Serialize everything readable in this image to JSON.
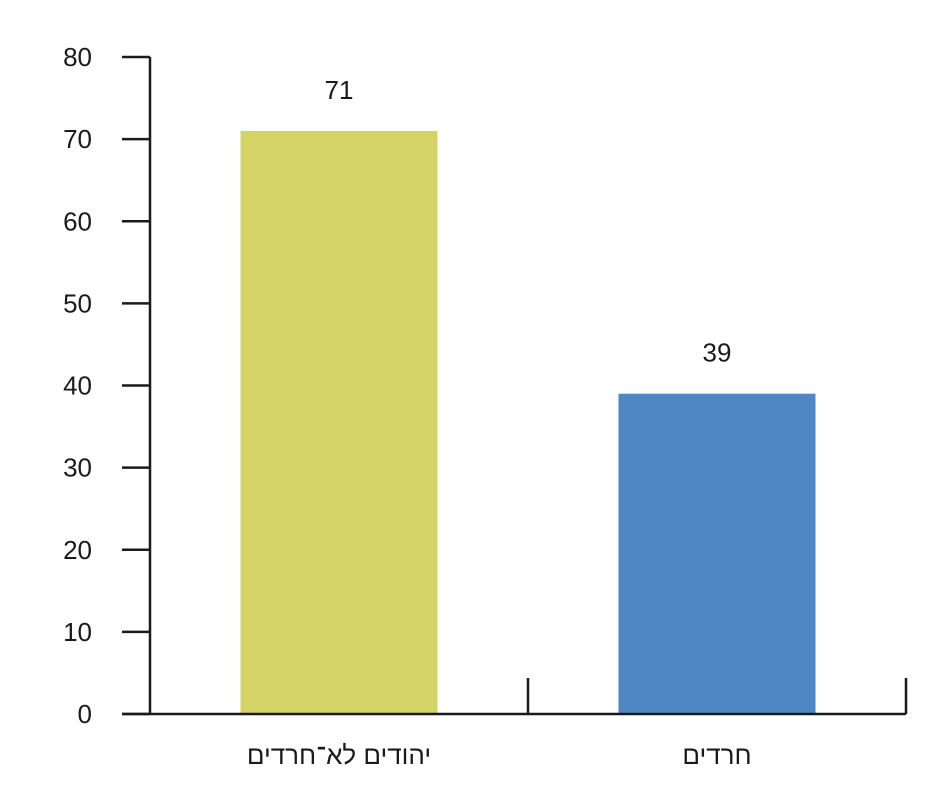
{
  "chart_data": {
    "type": "bar",
    "title": "",
    "xlabel": "",
    "ylabel": "",
    "categories": [
      "יהודים לא־חרדים",
      "חרדים"
    ],
    "values": [
      71,
      39
    ],
    "colors": [
      "#d4d466",
      "#4f87c5"
    ],
    "ylim": [
      0,
      80
    ],
    "yticks": [
      0,
      10,
      20,
      30,
      40,
      50,
      60,
      70,
      80
    ],
    "data_labels": [
      "71",
      "39"
    ],
    "grid": false,
    "legend": "none"
  }
}
